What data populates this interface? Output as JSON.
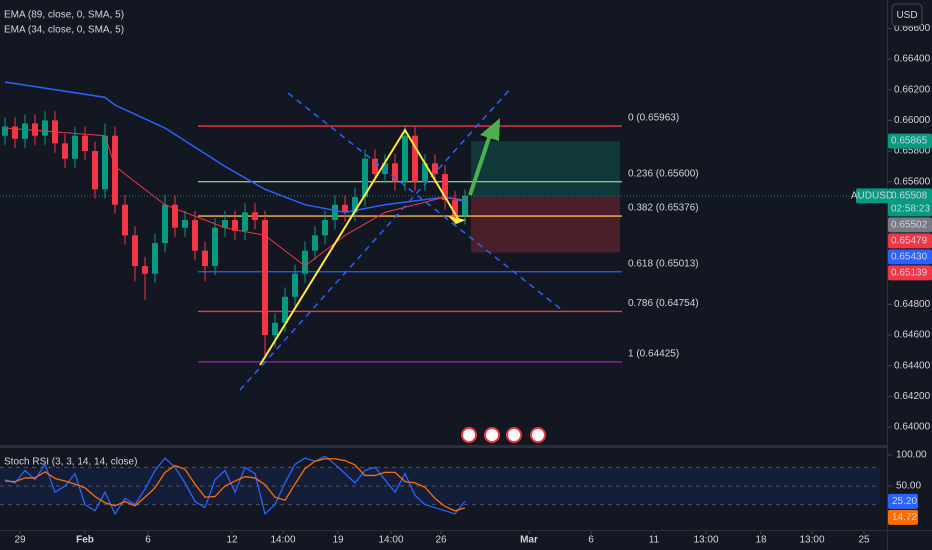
{
  "currency": "USD",
  "chart_data": [
    {
      "type": "candlestick",
      "open": [
        0.659,
        0.6596,
        0.6588,
        0.6598,
        0.659,
        0.66,
        0.6585,
        0.6575,
        0.659,
        0.658,
        0.6555,
        0.659,
        0.6545,
        0.6525,
        0.6505,
        0.65,
        0.652,
        0.6545,
        0.653,
        0.6535,
        0.6515,
        0.6505,
        0.653,
        0.6535,
        0.6528,
        0.654,
        0.6535,
        0.646,
        0.6468,
        0.6485,
        0.65,
        0.6515,
        0.6525,
        0.6535,
        0.6545,
        0.654,
        0.655,
        0.6575,
        0.6565,
        0.6572,
        0.656,
        0.659,
        0.656,
        0.6572,
        0.6565,
        0.6548,
        0.6538
      ],
      "high": [
        0.6602,
        0.6602,
        0.6604,
        0.6604,
        0.6606,
        0.6606,
        0.6591,
        0.6596,
        0.6596,
        0.6586,
        0.6598,
        0.6596,
        0.6551,
        0.6531,
        0.6511,
        0.6526,
        0.6551,
        0.6551,
        0.6541,
        0.6541,
        0.6521,
        0.6536,
        0.6541,
        0.6541,
        0.6546,
        0.6546,
        0.6541,
        0.6474,
        0.6491,
        0.6506,
        0.6521,
        0.6531,
        0.6541,
        0.6551,
        0.6551,
        0.6556,
        0.6581,
        0.6581,
        0.6578,
        0.6578,
        0.6597,
        0.6596,
        0.6578,
        0.6578,
        0.6571,
        0.6554,
        0.6555
      ],
      "low": [
        0.6584,
        0.6582,
        0.6582,
        0.6584,
        0.6584,
        0.6579,
        0.6569,
        0.6569,
        0.6574,
        0.6549,
        0.6549,
        0.6539,
        0.6519,
        0.6495,
        0.6483,
        0.6494,
        0.6514,
        0.6524,
        0.6524,
        0.6509,
        0.6495,
        0.6499,
        0.6524,
        0.6522,
        0.6522,
        0.6529,
        0.6447,
        0.6452,
        0.6462,
        0.6479,
        0.6494,
        0.6509,
        0.6519,
        0.6529,
        0.6534,
        0.6534,
        0.6544,
        0.6559,
        0.6559,
        0.6554,
        0.6554,
        0.6554,
        0.6554,
        0.6559,
        0.6542,
        0.6532,
        0.6532
      ],
      "close": [
        0.6596,
        0.6588,
        0.6598,
        0.659,
        0.66,
        0.6585,
        0.6575,
        0.659,
        0.658,
        0.6555,
        0.659,
        0.6545,
        0.6525,
        0.6505,
        0.65,
        0.652,
        0.6545,
        0.653,
        0.6535,
        0.6515,
        0.6505,
        0.653,
        0.6535,
        0.6528,
        0.654,
        0.6535,
        0.646,
        0.6468,
        0.6485,
        0.65,
        0.6515,
        0.6525,
        0.6535,
        0.6545,
        0.654,
        0.655,
        0.6575,
        0.6565,
        0.6572,
        0.656,
        0.659,
        0.656,
        0.6572,
        0.6565,
        0.6548,
        0.6538,
        0.6551
      ],
      "up_color": "#089981",
      "down_color": "#f23645",
      "ylim": [
        0.63883,
        0.66785
      ],
      "yticks": [
        {
          "value": 0.666,
          "label": "0.66600"
        },
        {
          "value": 0.664,
          "label": "0.66400"
        },
        {
          "value": 0.662,
          "label": "0.66200"
        },
        {
          "value": 0.66,
          "label": "0.66000"
        },
        {
          "value": 0.658,
          "label": "0.65800"
        },
        {
          "value": 0.656,
          "label": "0.65600"
        },
        {
          "value": 0.648,
          "label": "0.64800"
        },
        {
          "value": 0.646,
          "label": "0.64600"
        },
        {
          "value": 0.644,
          "label": "0.64400"
        },
        {
          "value": 0.642,
          "label": "0.64200"
        },
        {
          "value": 0.64,
          "label": "0.64000"
        }
      ],
      "xlim": [
        -0.5,
        87.5
      ],
      "xticks": [
        {
          "value": 1.5,
          "label": "29"
        },
        {
          "value": 8,
          "label": "Feb"
        },
        {
          "value": 14.3,
          "label": "6"
        },
        {
          "value": 22.7,
          "label": "12"
        },
        {
          "value": 27.8,
          "label": "14:00"
        },
        {
          "value": 33.3,
          "label": "19"
        },
        {
          "value": 38.6,
          "label": "14:00"
        },
        {
          "value": 43.6,
          "label": "26"
        },
        {
          "value": 52.4,
          "label": "Mar"
        },
        {
          "value": 58.6,
          "label": "6"
        },
        {
          "value": 64.9,
          "label": "11"
        },
        {
          "value": 70.1,
          "label": "13:00"
        },
        {
          "value": 75.6,
          "label": "18"
        },
        {
          "value": 80.7,
          "label": "13:00"
        },
        {
          "value": 85.9,
          "label": "25"
        }
      ],
      "series": [
        {
          "name": "EMA (89, close, 0, SMA, 5)",
          "color": "#2962ff",
          "x": [
            0,
            10,
            11,
            16,
            22,
            26,
            30,
            34,
            38,
            44,
            46
          ],
          "values": [
            0.6625,
            0.6615,
            0.661,
            0.6595,
            0.657,
            0.6555,
            0.6545,
            0.654,
            0.6545,
            0.655,
            0.6547
          ]
        },
        {
          "name": "EMA (34, close, 0, SMA, 5)",
          "color": "#f23645",
          "x": [
            0,
            10,
            11,
            16,
            22,
            26,
            30,
            34,
            38,
            44,
            46
          ],
          "values": [
            0.6595,
            0.659,
            0.657,
            0.6545,
            0.653,
            0.6525,
            0.6505,
            0.6525,
            0.654,
            0.655,
            0.6548
          ]
        }
      ],
      "fib_levels": [
        {
          "value": 0.65963,
          "label": "0 (0.65963)",
          "color": "#f23645"
        },
        {
          "value": 0.656,
          "label": "0.236 (0.65600)",
          "color": "#81c784"
        },
        {
          "value": 0.65376,
          "label": "0.382 (0.65376)",
          "color": "#ffb74d"
        },
        {
          "value": 0.65013,
          "label": "0.618 (0.65013)",
          "color": "#2962ff"
        },
        {
          "value": 0.64754,
          "label": "0.786 (0.64754)",
          "color": "#f23645"
        },
        {
          "value": 0.64425,
          "label": "1 (0.64425)",
          "color": "#9c27b0"
        }
      ],
      "price_tags": [
        {
          "value": 0.65865,
          "label": "0.65865",
          "color": "#089981"
        },
        {
          "name": "AUDUSD",
          "value": 0.65508,
          "label": "0.65508",
          "countdown": "02:58:23",
          "color": "#089981"
        },
        {
          "value": 0.65502,
          "label": "0.65502",
          "color": "#787b86"
        },
        {
          "value": 0.65479,
          "label": "0.65479",
          "color": "#f23645"
        },
        {
          "value": 0.6543,
          "label": "0.65430",
          "color": "#2962ff"
        },
        {
          "value": 0.65139,
          "label": "0.65139",
          "color": "#f23645"
        }
      ]
    },
    {
      "type": "line",
      "title": "Stoch RSI (3, 3, 14, 14, close)",
      "ylim": [
        -21,
        112.9
      ],
      "yticks": [
        {
          "value": 100,
          "label": "100.00"
        },
        {
          "value": 50,
          "label": "50.00"
        }
      ],
      "levels": [
        80,
        50,
        20
      ],
      "series": [
        {
          "color": "#2962ff",
          "last_label": "25.20",
          "values": [
            60,
            55,
            75,
            60,
            85,
            40,
            50,
            70,
            20,
            10,
            40,
            5,
            30,
            20,
            45,
            75,
            95,
            80,
            55,
            25,
            15,
            60,
            75,
            40,
            80,
            70,
            5,
            20,
            55,
            85,
            95,
            90,
            98,
            85,
            70,
            55,
            75,
            80,
            60,
            40,
            70,
            35,
            20,
            15,
            10,
            5,
            25.2
          ]
        },
        {
          "color": "#ff6d00",
          "last_label": "14.72",
          "values": [
            58,
            57,
            63,
            63,
            73,
            62,
            58,
            53,
            47,
            33,
            23,
            18,
            25,
            18,
            32,
            47,
            72,
            83,
            77,
            53,
            32,
            33,
            50,
            58,
            65,
            63,
            52,
            32,
            27,
            53,
            78,
            90,
            94,
            94,
            91,
            84,
            67,
            67,
            72,
            72,
            57,
            55,
            48,
            30,
            17,
            10,
            14.72
          ]
        }
      ]
    }
  ]
}
